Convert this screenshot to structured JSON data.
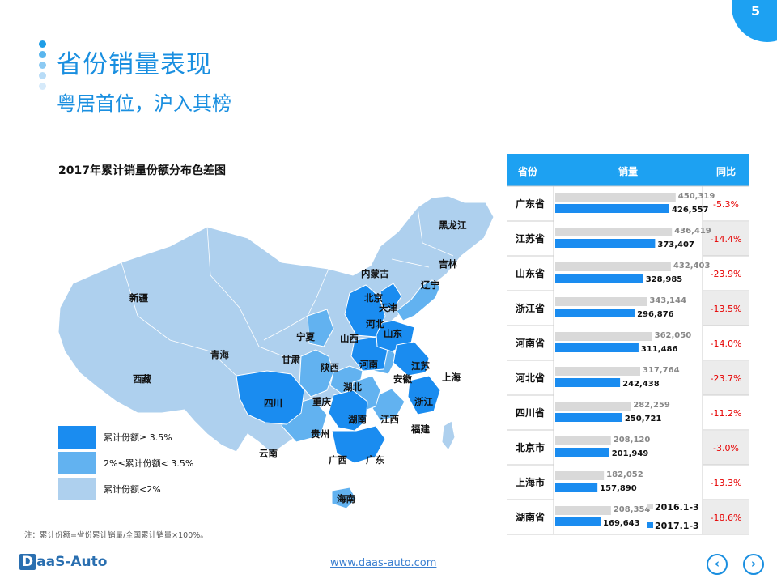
{
  "page": {
    "number": "5",
    "title": "省份销量表现",
    "subtitle": "粤居首位，沪入其榜",
    "footnote": "注：累计份额=省份累计销量/全国累计销量×100%。",
    "logo": "aaS-Auto",
    "logo_mark": "D",
    "website": "www.daas-auto.com",
    "nav": {
      "prev_icon": "chevron-left-icon",
      "next_icon": "chevron-right-icon"
    }
  },
  "colors": {
    "accent": "#1a8fe0",
    "header": "#1da1f2",
    "bar_2017": "#1a8cf0",
    "bar_2016": "#d9d9d9",
    "yoy_text": "#e60000"
  },
  "map": {
    "title": "2017年累计销量份额分布色差图",
    "legend": [
      {
        "label": "累计份额≥ 3.5%",
        "color": "#1a8cf0"
      },
      {
        "label": "2%≤累计份额<  3.5%",
        "color": "#62b2f0"
      },
      {
        "label": "累计份额<2%",
        "color": "#aed0ee"
      }
    ],
    "province_labels": [
      "黑龙江",
      "吉林",
      "辽宁",
      "内蒙古",
      "新疆",
      "西藏",
      "青海",
      "甘肃",
      "宁夏",
      "北京",
      "天津",
      "河北",
      "山西",
      "山东",
      "陕西",
      "河南",
      "江苏",
      "上海",
      "安徽",
      "湖北",
      "重庆",
      "四川",
      "浙江",
      "湖南",
      "江西",
      "贵州",
      "福建",
      "云南",
      "广西",
      "广东",
      "海南"
    ]
  },
  "chart_data": {
    "type": "bar",
    "header": {
      "province": "省份",
      "sales": "销量",
      "yoy": "同比"
    },
    "categories": [
      "广东省",
      "江苏省",
      "山东省",
      "浙江省",
      "河南省",
      "河北省",
      "四川省",
      "北京市",
      "上海市",
      "湖南省"
    ],
    "series": [
      {
        "name": "2016.1-3",
        "values": [
          450319,
          436419,
          432403,
          343144,
          362050,
          317764,
          282259,
          208120,
          182052,
          208354
        ],
        "labels": [
          "450,319",
          "436,419",
          "432,403",
          "343,144",
          "362,050",
          "317,764",
          "282,259",
          "208,120",
          "182,052",
          "208,354"
        ]
      },
      {
        "name": "2017.1-3",
        "values": [
          426557,
          373407,
          328985,
          296876,
          311486,
          242438,
          250721,
          201949,
          157890,
          169643
        ],
        "labels": [
          "426,557",
          "373,407",
          "328,985",
          "296,876",
          "311,486",
          "242,438",
          "250,721",
          "201,949",
          "157,890",
          "169,643"
        ]
      }
    ],
    "yoy": [
      "-5.3%",
      "-14.4%",
      "-23.9%",
      "-13.5%",
      "-14.0%",
      "-23.7%",
      "-11.2%",
      "-3.0%",
      "-13.3%",
      "-18.6%"
    ],
    "legend_placement": "bottom-right"
  }
}
